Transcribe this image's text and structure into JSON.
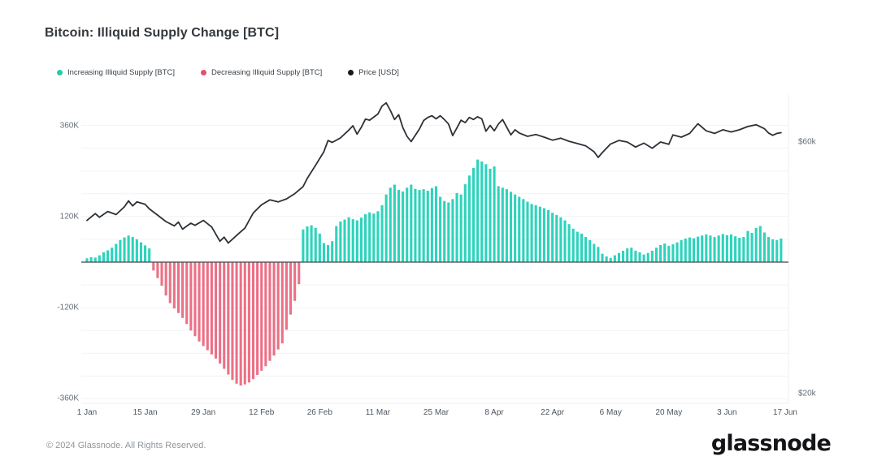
{
  "title": "Bitcoin: Illiquid Supply Change [BTC]",
  "legend": [
    {
      "label": "Increasing Illiquid Supply [BTC]",
      "color": "#23ccab"
    },
    {
      "label": "Decreasing Illiquid Supply [BTC]",
      "color": "#df5370"
    },
    {
      "label": "Price [USD]",
      "color": "#17191c"
    }
  ],
  "footer": {
    "copyright": "© 2024 Glassnode. All Rights Reserved.",
    "brand": "glassnode"
  },
  "colors": {
    "increasing_bar": "#2ed3bc",
    "decreasing_bar": "#ec7086",
    "price_line": "#2c3137",
    "zero_line": "#40474e",
    "gridline": "#f1f3f4",
    "plot_border": "#eceff1"
  },
  "chart_data": {
    "type": "bar",
    "title": "Bitcoin: Illiquid Supply Change [BTC]",
    "series_info": [
      {
        "name": "Increasing Illiquid Supply [BTC]",
        "type": "bar",
        "axis": "left"
      },
      {
        "name": "Decreasing Illiquid Supply [BTC]",
        "type": "bar",
        "axis": "left"
      },
      {
        "name": "Price [USD]",
        "type": "line",
        "axis": "right"
      }
    ],
    "left_axis": {
      "unit": "BTC",
      "scale": "linear",
      "tick_labels": [
        "360K",
        "120K",
        "-120K",
        "-360K"
      ],
      "tick_values_k": [
        360,
        120,
        -120,
        -360
      ],
      "gridline_step_k": 60,
      "range_k": [
        -400,
        420
      ]
    },
    "right_axis": {
      "unit": "USD",
      "scale": "log",
      "tick_labels": [
        "$60k",
        "$20k"
      ],
      "tick_values_k": [
        60,
        20
      ]
    },
    "x_axis": {
      "tick_labels": [
        "1 Jan",
        "15 Jan",
        "29 Jan",
        "12 Feb",
        "26 Feb",
        "11 Mar",
        "25 Mar",
        "8 Apr",
        "22 Apr",
        "6 May",
        "20 May",
        "3 Jun",
        "17 Jun"
      ],
      "tick_day_index": [
        0,
        14,
        28,
        42,
        56,
        70,
        84,
        98,
        112,
        126,
        140,
        154,
        168
      ],
      "start_date": "1 Jan 2024",
      "end_date": "17 Jun 2024",
      "frequency": "daily"
    },
    "bars_supply_change_k_btc": [
      10,
      13,
      12,
      18,
      26,
      31,
      38,
      48,
      58,
      65,
      70,
      66,
      60,
      52,
      44,
      36,
      -22,
      -42,
      -62,
      -88,
      -108,
      -122,
      -134,
      -147,
      -163,
      -180,
      -195,
      -209,
      -221,
      -232,
      -243,
      -254,
      -267,
      -281,
      -296,
      -310,
      -320,
      -325,
      -322,
      -317,
      -308,
      -297,
      -286,
      -274,
      -260,
      -246,
      -230,
      -214,
      -178,
      -138,
      -102,
      -58,
      86,
      94,
      97,
      90,
      75,
      50,
      45,
      55,
      95,
      107,
      112,
      118,
      113,
      110,
      117,
      126,
      131,
      128,
      134,
      150,
      178,
      196,
      204,
      190,
      186,
      196,
      204,
      193,
      190,
      192,
      188,
      195,
      200,
      172,
      161,
      157,
      166,
      182,
      178,
      205,
      228,
      248,
      270,
      265,
      258,
      246,
      252,
      200,
      196,
      192,
      185,
      178,
      172,
      166,
      159,
      153,
      150,
      146,
      142,
      137,
      130,
      124,
      118,
      110,
      100,
      88,
      80,
      75,
      66,
      58,
      48,
      40,
      22,
      15,
      11,
      18,
      24,
      30,
      36,
      38,
      30,
      26,
      20,
      24,
      30,
      38,
      45,
      49,
      43,
      47,
      52,
      58,
      62,
      65,
      63,
      67,
      70,
      73,
      70,
      66,
      70,
      74,
      71,
      73,
      68,
      64,
      66,
      82,
      77,
      90,
      95,
      78,
      66,
      60,
      58,
      62
    ],
    "price_usd_k_by_day": [
      [
        0,
        42.6
      ],
      [
        2,
        43.9
      ],
      [
        3,
        43.2
      ],
      [
        5,
        44.3
      ],
      [
        7,
        43.7
      ],
      [
        9,
        45.2
      ],
      [
        10,
        46.4
      ],
      [
        11,
        45.4
      ],
      [
        12,
        46.2
      ],
      [
        14,
        45.7
      ],
      [
        15,
        44.8
      ],
      [
        17,
        43.6
      ],
      [
        19,
        42.4
      ],
      [
        21,
        41.6
      ],
      [
        22,
        42.3
      ],
      [
        23,
        41.0
      ],
      [
        25,
        42.1
      ],
      [
        26,
        41.7
      ],
      [
        28,
        42.6
      ],
      [
        30,
        41.4
      ],
      [
        32,
        38.9
      ],
      [
        33,
        39.6
      ],
      [
        34,
        38.6
      ],
      [
        36,
        39.9
      ],
      [
        38,
        41.2
      ],
      [
        40,
        44.0
      ],
      [
        42,
        45.6
      ],
      [
        44,
        46.6
      ],
      [
        46,
        46.2
      ],
      [
        48,
        46.8
      ],
      [
        50,
        47.9
      ],
      [
        52,
        49.4
      ],
      [
        53,
        51.2
      ],
      [
        55,
        54.2
      ],
      [
        57,
        57.5
      ],
      [
        58,
        60.4
      ],
      [
        59,
        59.9
      ],
      [
        61,
        61.1
      ],
      [
        63,
        63.2
      ],
      [
        64,
        64.4
      ],
      [
        65,
        62.1
      ],
      [
        66,
        64.0
      ],
      [
        67,
        66.3
      ],
      [
        68,
        66.0
      ],
      [
        70,
        67.8
      ],
      [
        71,
        70.2
      ],
      [
        72,
        71.2
      ],
      [
        73,
        68.9
      ],
      [
        74,
        66.2
      ],
      [
        75,
        67.6
      ],
      [
        76,
        63.9
      ],
      [
        77,
        61.5
      ],
      [
        78,
        60.1
      ],
      [
        80,
        63.5
      ],
      [
        81,
        65.9
      ],
      [
        82,
        66.8
      ],
      [
        83,
        67.3
      ],
      [
        84,
        66.4
      ],
      [
        85,
        67.3
      ],
      [
        86,
        66.2
      ],
      [
        87,
        64.9
      ],
      [
        88,
        61.7
      ],
      [
        89,
        63.8
      ],
      [
        90,
        66.0
      ],
      [
        91,
        65.3
      ],
      [
        92,
        66.8
      ],
      [
        93,
        66.2
      ],
      [
        94,
        67.0
      ],
      [
        95,
        66.4
      ],
      [
        96,
        62.9
      ],
      [
        97,
        64.5
      ],
      [
        98,
        63.0
      ],
      [
        99,
        64.9
      ],
      [
        100,
        66.2
      ],
      [
        102,
        61.9
      ],
      [
        103,
        63.3
      ],
      [
        104,
        62.4
      ],
      [
        106,
        61.5
      ],
      [
        108,
        62.0
      ],
      [
        110,
        61.3
      ],
      [
        112,
        60.5
      ],
      [
        114,
        61.0
      ],
      [
        116,
        60.2
      ],
      [
        118,
        59.6
      ],
      [
        120,
        59.0
      ],
      [
        122,
        57.5
      ],
      [
        123,
        56.1
      ],
      [
        124,
        57.3
      ],
      [
        126,
        59.5
      ],
      [
        128,
        60.4
      ],
      [
        130,
        60.0
      ],
      [
        132,
        58.7
      ],
      [
        134,
        59.7
      ],
      [
        136,
        58.4
      ],
      [
        138,
        60.0
      ],
      [
        140,
        59.4
      ],
      [
        141,
        61.9
      ],
      [
        143,
        61.3
      ],
      [
        145,
        62.3
      ],
      [
        147,
        65.0
      ],
      [
        149,
        63.0
      ],
      [
        151,
        62.3
      ],
      [
        153,
        63.3
      ],
      [
        155,
        62.7
      ],
      [
        157,
        63.3
      ],
      [
        159,
        64.2
      ],
      [
        161,
        64.7
      ],
      [
        163,
        63.6
      ],
      [
        164,
        62.4
      ],
      [
        165,
        61.8
      ],
      [
        166,
        62.3
      ],
      [
        167,
        62.5
      ]
    ]
  }
}
